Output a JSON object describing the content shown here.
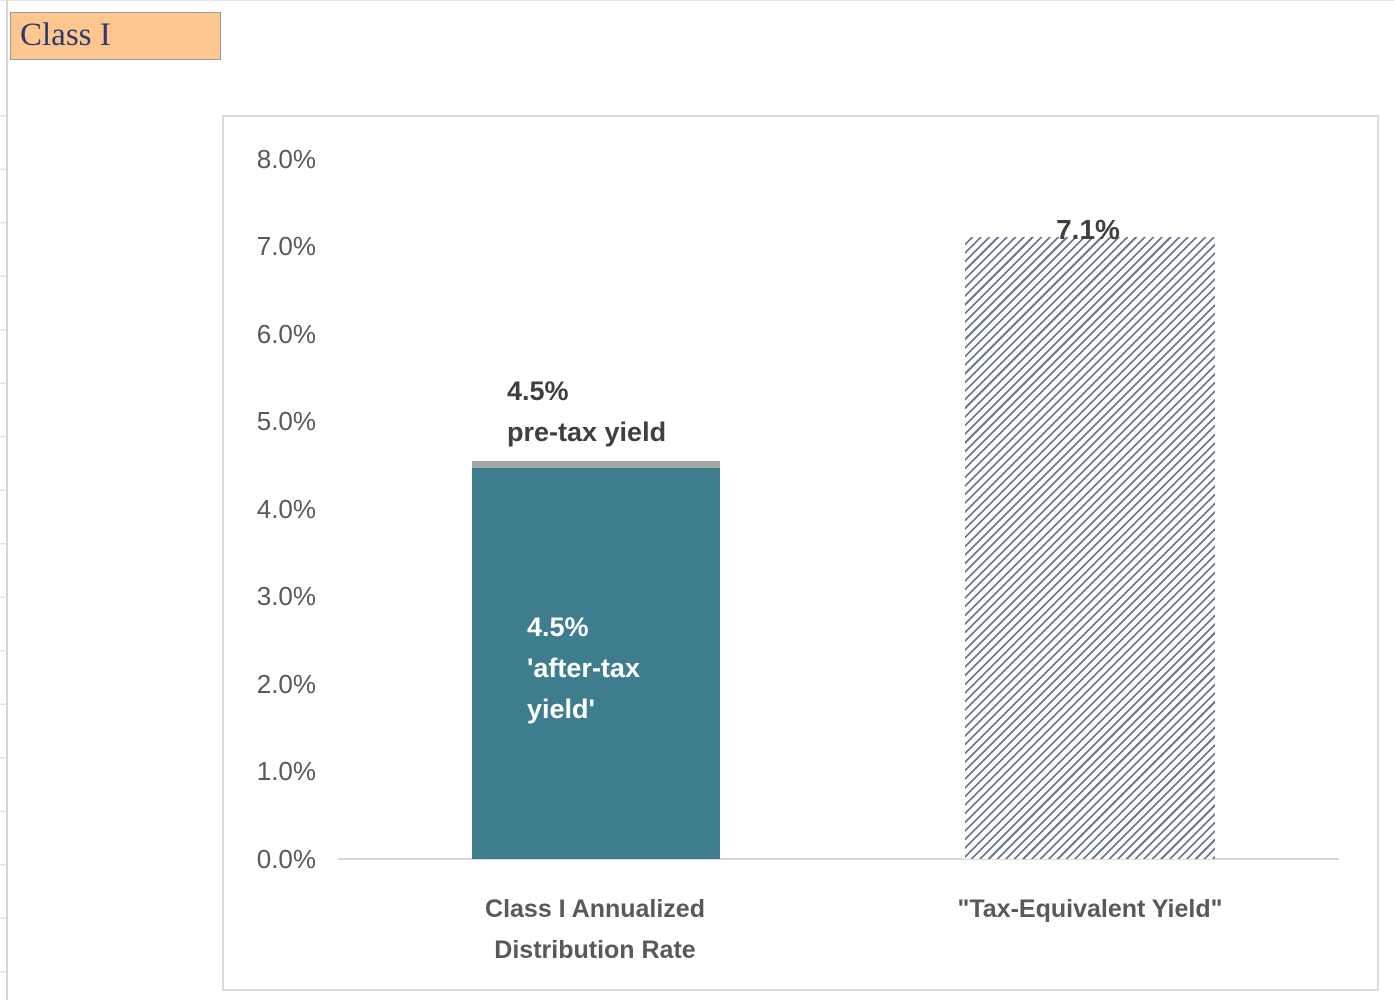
{
  "sheet": {
    "cell_label": "Class I",
    "cell_fill": "#FBC78E",
    "cell_text_color": "#2E3A6D"
  },
  "chart_data": {
    "type": "bar",
    "title": null,
    "xlabel": null,
    "ylabel": null,
    "ylim": [
      0,
      8
    ],
    "ytick_labels": [
      "0.0%",
      "1.0%",
      "2.0%",
      "3.0%",
      "4.0%",
      "5.0%",
      "6.0%",
      "7.0%",
      "8.0%"
    ],
    "gridlines": false,
    "legend": null,
    "categories": [
      "Class I Annualized Distribution Rate",
      "\"Tax-Equivalent Yield\""
    ],
    "bars": [
      {
        "category": "Class I Annualized Distribution Rate",
        "segments": [
          {
            "name": "after-tax yield",
            "value": 4.46,
            "fill": "solid",
            "color": "#3D7D8D"
          },
          {
            "name": "pre-tax increment cap",
            "value": 0.08,
            "fill": "solid",
            "color": "#A6A6A6"
          }
        ],
        "total_labeled": "4.5%",
        "label_above": "4.5%\npre-tax yield",
        "label_inside": "4.5%\n'after-tax\nyield'"
      },
      {
        "category": "\"Tax-Equivalent Yield\"",
        "segments": [
          {
            "name": "tax-equivalent yield",
            "value": 7.1,
            "fill": "diagonal-hatch",
            "color": "#66778F"
          }
        ],
        "total_labeled": "7.1%",
        "label_above": "7.1%"
      }
    ],
    "colors": {
      "axis_line": "#D9D9D9",
      "tick_text": "#595959",
      "category_text": "#595959",
      "value_label_text": "#3F3F3F",
      "inside_label_text": "#FFFFFF",
      "teal_bar": "#3D7D8D",
      "gray_cap": "#A6A6A6",
      "hatch_stripe": "#66778F"
    }
  }
}
